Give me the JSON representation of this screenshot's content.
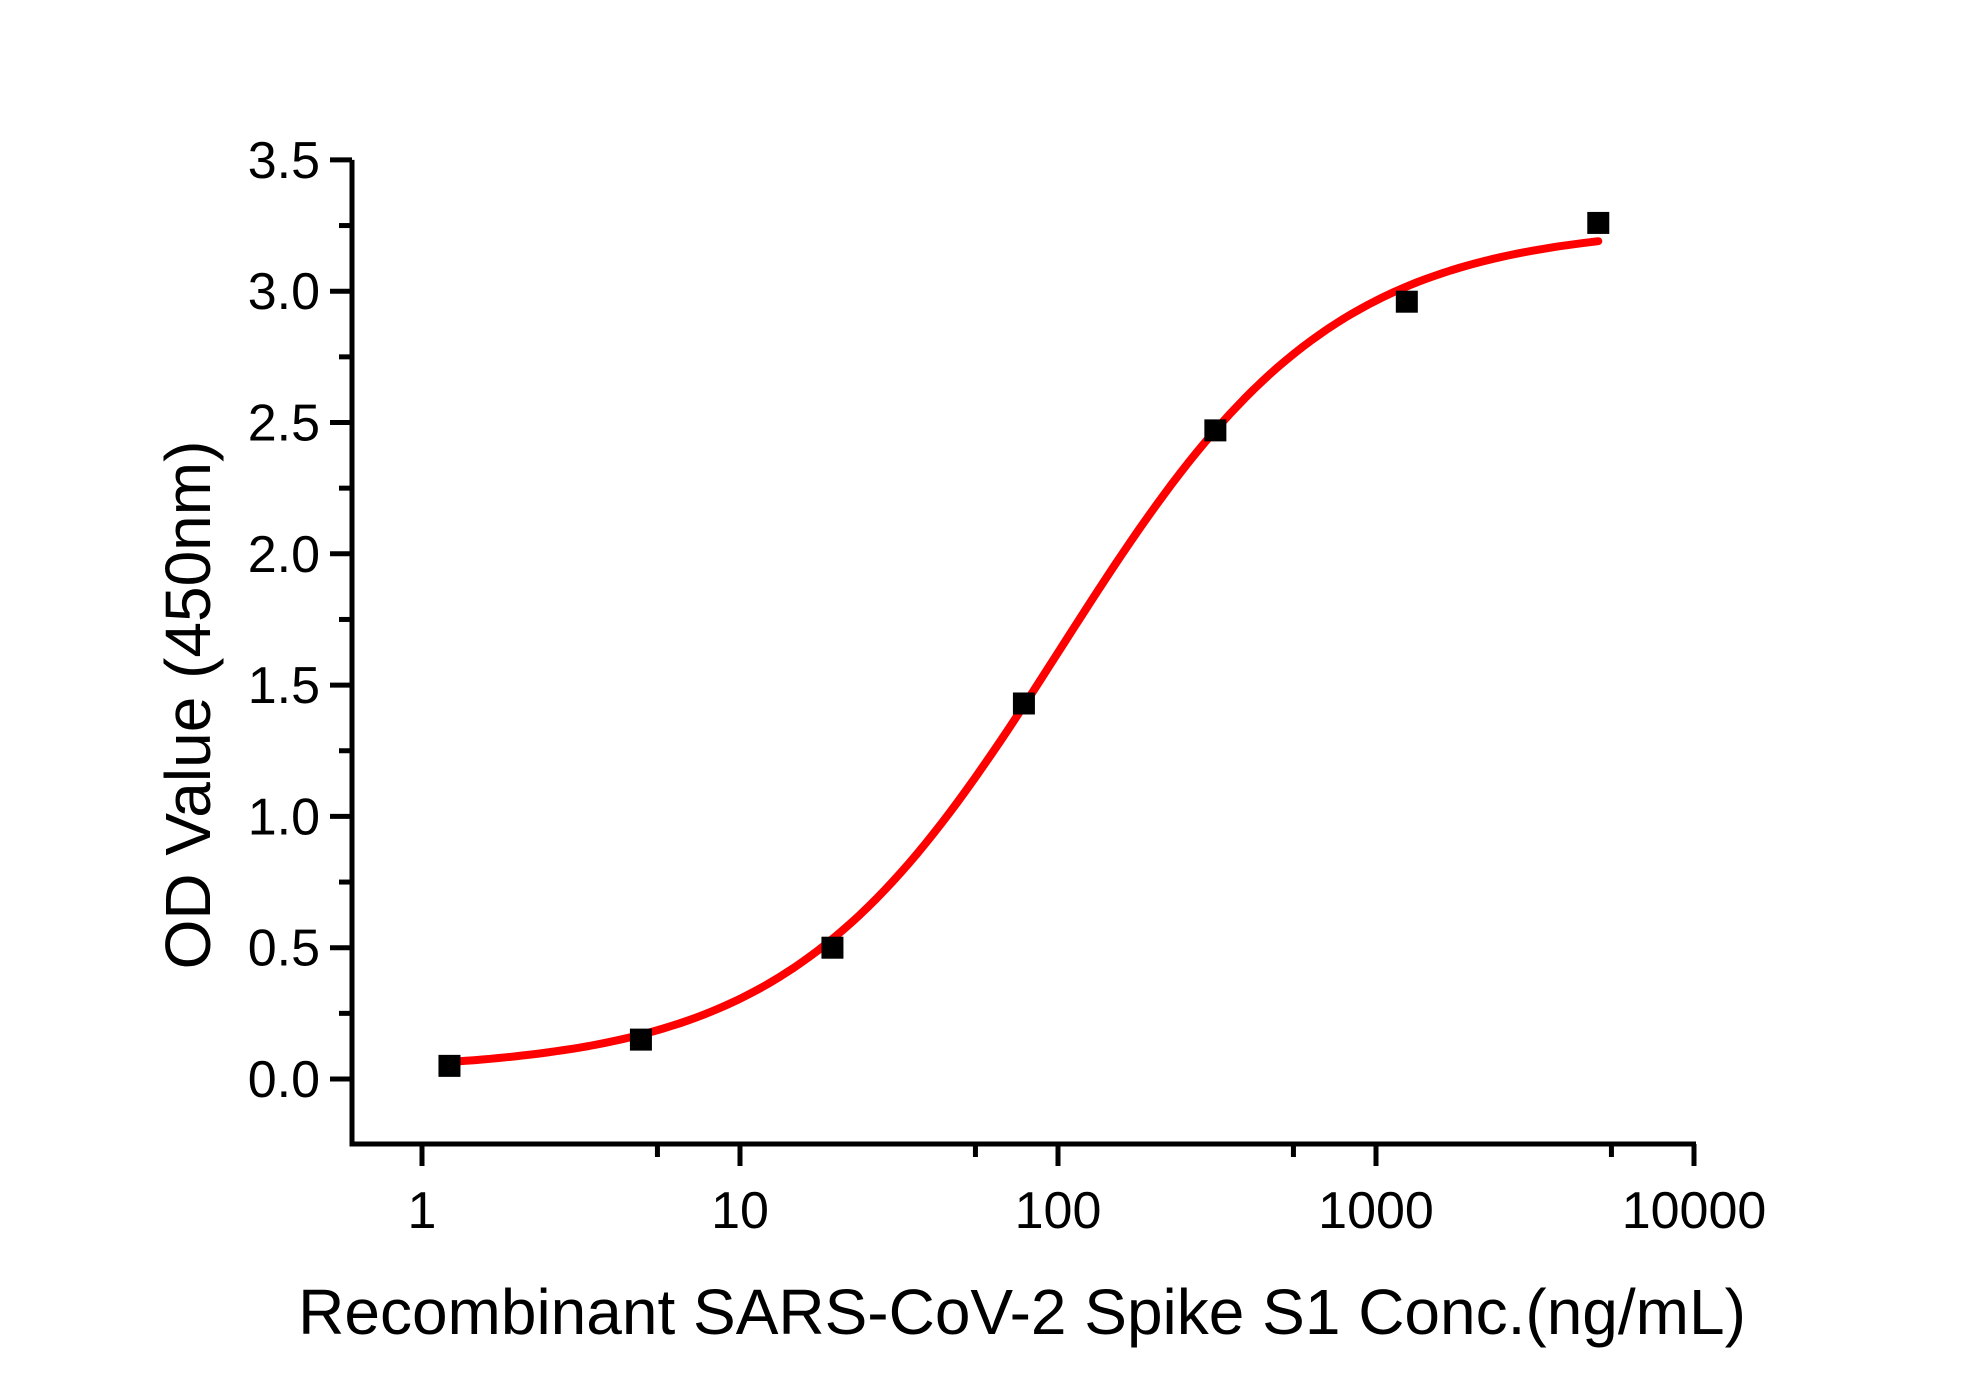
{
  "chart_data": {
    "type": "scatter",
    "title": "",
    "xlabel": "Recombinant SARS-CoV-2 Spike S1 Conc.(ng/mL)",
    "ylabel": "OD Value (450nm)",
    "x_scale": "log10",
    "x_range": [
      0.6,
      10000
    ],
    "y_range": [
      -0.25,
      3.5
    ],
    "grid": false,
    "legend_position": "none",
    "points": [
      {
        "x": 1.22,
        "y": 0.05
      },
      {
        "x": 4.88,
        "y": 0.15
      },
      {
        "x": 19.53,
        "y": 0.5
      },
      {
        "x": 78.13,
        "y": 1.43
      },
      {
        "x": 312.5,
        "y": 2.47
      },
      {
        "x": 1250,
        "y": 2.96
      },
      {
        "x": 5000,
        "y": 3.26
      }
    ],
    "fit_curve": {
      "model": "4PL",
      "bottom": 0.03,
      "top": 3.25,
      "ec50": 102,
      "hill": 1.02,
      "x_start": 1.22,
      "x_end": 5000
    },
    "x_axis": {
      "major_ticks": [
        1,
        10,
        100,
        1000,
        10000
      ],
      "major_labels": [
        "1",
        "10",
        "100",
        "1000",
        "10000"
      ],
      "minor_ticks": [
        5.5,
        55,
        550,
        5500
      ]
    },
    "y_axis": {
      "major_ticks": [
        0,
        0.5,
        1,
        1.5,
        2,
        2.5,
        3,
        3.5
      ],
      "major_labels": [
        "0.0",
        "0.5",
        "1.0",
        "1.5",
        "2.0",
        "2.5",
        "3.0",
        "3.5"
      ],
      "minor_ticks": [
        0.25,
        0.75,
        1.25,
        1.75,
        2.25,
        2.75,
        3.25
      ]
    },
    "colors": {
      "curve": "#ff0000",
      "marker": "#000000",
      "axis": "#000000",
      "background": "#ffffff"
    }
  }
}
